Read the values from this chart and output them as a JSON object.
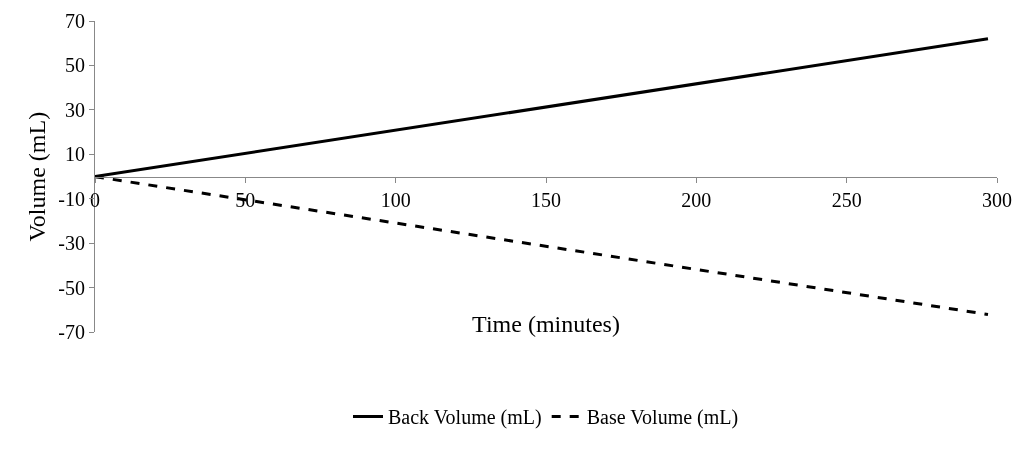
{
  "chart_data": {
    "type": "line",
    "xlabel": "Time (minutes)",
    "ylabel": "Volume (mL)",
    "x": [
      0,
      297
    ],
    "series": [
      {
        "name": "Back Volume (mL)",
        "color": "#000000",
        "values": [
          0,
          62
        ],
        "line_style": "solid"
      },
      {
        "name": "Base Volume (mL)",
        "color": "#000000",
        "values": [
          0,
          -62
        ],
        "line_style": "dashed"
      }
    ],
    "xlim": [
      0,
      300
    ],
    "xticks": [
      0,
      50,
      100,
      150,
      200,
      250,
      300
    ],
    "ylim": [
      -70,
      70
    ],
    "yticks": [
      -70,
      -50,
      -30,
      -10,
      10,
      30,
      50,
      70
    ],
    "legend": "bottom",
    "marker": "none"
  }
}
